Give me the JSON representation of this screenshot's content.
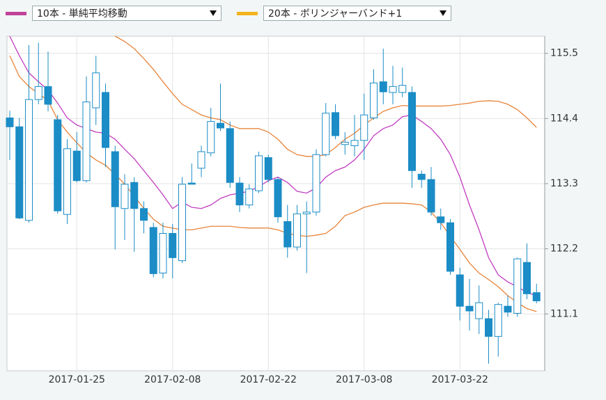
{
  "chart_data": {
    "type": "candlestick",
    "categories": [
      null,
      null,
      null,
      null,
      null,
      null,
      null,
      "2017-01-25",
      null,
      null,
      null,
      null,
      null,
      null,
      null,
      null,
      null,
      "2017-02-08",
      null,
      null,
      null,
      null,
      null,
      null,
      null,
      null,
      null,
      "2017-02-22",
      null,
      null,
      null,
      null,
      null,
      null,
      null,
      null,
      null,
      "2017-03-08",
      null,
      null,
      null,
      null,
      null,
      null,
      null,
      null,
      null,
      "2017-03-22",
      null,
      null,
      null,
      null,
      null,
      null,
      null,
      null
    ],
    "open": [
      114.41,
      114.26,
      112.68,
      114.72,
      114.94,
      114.38,
      112.78,
      113.85,
      113.35,
      114.58,
      114.84,
      113.84,
      112.88,
      113.32,
      112.88,
      112.56,
      111.79,
      112.46,
      112.0,
      113.31,
      113.56,
      113.82,
      114.32,
      114.23,
      113.31,
      112.94,
      113.18,
      113.74,
      113.37,
      112.66,
      112.23,
      112.79,
      112.82,
      113.79,
      114.5,
      113.96,
      113.94,
      114.03,
      114.41,
      115.02,
      114.84,
      114.84,
      114.84,
      113.46,
      113.37,
      112.74,
      112.64,
      111.76,
      111.23,
      111.02,
      111.02,
      110.72,
      111.23,
      111.11,
      111.97,
      111.46
    ],
    "high": [
      114.53,
      114.41,
      115.64,
      115.68,
      115.53,
      114.46,
      114.05,
      114.17,
      115.11,
      115.46,
      114.99,
      113.94,
      113.46,
      113.41,
      113.0,
      112.64,
      112.64,
      112.62,
      113.41,
      113.64,
      113.94,
      114.58,
      114.99,
      114.35,
      113.41,
      113.29,
      113.84,
      113.79,
      113.41,
      112.94,
      112.94,
      113.0,
      113.88,
      114.66,
      114.64,
      114.17,
      114.46,
      114.82,
      115.23,
      115.58,
      115.29,
      115.26,
      114.94,
      113.52,
      113.58,
      112.88,
      112.7,
      111.88,
      111.69,
      111.58,
      111.17,
      111.29,
      111.41,
      112.05,
      112.29,
      111.61
    ],
    "low": [
      113.7,
      112.7,
      112.64,
      114.64,
      114.52,
      112.79,
      112.62,
      113.32,
      113.32,
      114.29,
      113.58,
      112.19,
      112.35,
      112.15,
      112.46,
      111.72,
      111.7,
      111.7,
      111.96,
      113.29,
      113.41,
      113.76,
      114.19,
      113.23,
      112.82,
      112.88,
      113.14,
      113.32,
      112.64,
      112.05,
      112.17,
      111.79,
      112.76,
      113.76,
      114.05,
      113.79,
      113.76,
      113.7,
      114.38,
      114.64,
      114.64,
      114.76,
      113.23,
      113.23,
      112.76,
      112.52,
      111.76,
      110.99,
      110.82,
      110.76,
      110.26,
      110.38,
      111.05,
      111.05,
      111.35,
      111.28
    ],
    "close": [
      114.26,
      112.72,
      114.72,
      114.94,
      114.64,
      112.84,
      113.89,
      113.35,
      114.68,
      115.17,
      113.91,
      112.91,
      113.29,
      112.88,
      112.68,
      111.78,
      112.46,
      112.05,
      113.29,
      113.29,
      113.84,
      114.35,
      114.24,
      113.32,
      112.94,
      113.21,
      113.77,
      113.37,
      112.74,
      112.23,
      112.79,
      112.82,
      113.79,
      114.49,
      114.11,
      114.0,
      114.03,
      114.46,
      115.0,
      114.85,
      114.94,
      114.96,
      113.52,
      113.37,
      112.82,
      112.64,
      111.82,
      111.23,
      111.15,
      111.29,
      110.72,
      111.26,
      111.13,
      112.03,
      111.44,
      111.32
    ],
    "candle_color": "#1b8cc6",
    "series": [
      {
        "name": "10本 - 単純平均移動",
        "color": "#c23cc0",
        "legend_color": "#c0429a",
        "values": [
          115.79,
          115.46,
          115.17,
          115.02,
          114.88,
          114.66,
          114.41,
          114.29,
          114.23,
          114.17,
          114.15,
          114.05,
          113.88,
          113.72,
          113.52,
          113.32,
          113.11,
          112.88,
          112.99,
          112.9,
          112.88,
          112.94,
          113.05,
          113.11,
          113.14,
          113.17,
          113.25,
          113.35,
          113.41,
          113.32,
          113.17,
          113.14,
          113.23,
          113.41,
          113.52,
          113.58,
          113.7,
          113.88,
          114.11,
          114.23,
          114.29,
          114.43,
          114.46,
          114.35,
          114.23,
          114.05,
          113.79,
          113.41,
          112.94,
          112.52,
          112.05,
          111.76,
          111.64,
          111.56,
          111.46,
          111.41
        ]
      },
      {
        "name": "20本 - ボリンジャーバンド+1",
        "color": "#e8843a",
        "legend_color": "#f2b41c",
        "upper": [
          null,
          null,
          null,
          null,
          null,
          null,
          null,
          null,
          null,
          null,
          null,
          115.79,
          115.7,
          115.58,
          115.41,
          115.23,
          115.02,
          114.82,
          114.64,
          114.55,
          114.46,
          114.41,
          114.38,
          114.29,
          114.23,
          114.23,
          114.23,
          114.17,
          114.05,
          113.88,
          113.79,
          113.76,
          113.76,
          113.79,
          113.91,
          114.05,
          114.15,
          114.29,
          114.41,
          114.52,
          114.58,
          114.62,
          114.61,
          114.61,
          114.61,
          114.61,
          114.62,
          114.64,
          114.66,
          114.69,
          114.7,
          114.69,
          114.64,
          114.55,
          114.41,
          114.25
        ],
        "lower": [
          115.46,
          115.11,
          114.94,
          114.82,
          114.7,
          114.38,
          114.17,
          113.99,
          113.82,
          113.7,
          113.61,
          113.46,
          113.29,
          113.09,
          112.88,
          112.7,
          112.58,
          112.55,
          112.52,
          112.52,
          112.55,
          112.58,
          112.58,
          112.58,
          112.56,
          112.55,
          112.55,
          112.55,
          112.52,
          112.46,
          112.43,
          112.41,
          112.43,
          112.46,
          112.58,
          112.76,
          112.82,
          112.9,
          112.94,
          112.97,
          112.97,
          112.97,
          112.96,
          112.94,
          112.82,
          112.64,
          112.41,
          112.19,
          111.96,
          111.79,
          111.68,
          111.56,
          111.41,
          111.29,
          111.19,
          111.14
        ]
      }
    ],
    "ylim": [
      110.14,
      115.79
    ],
    "yticks": [
      111.1,
      112.2,
      113.3,
      114.4,
      115.5
    ],
    "grid": true
  }
}
